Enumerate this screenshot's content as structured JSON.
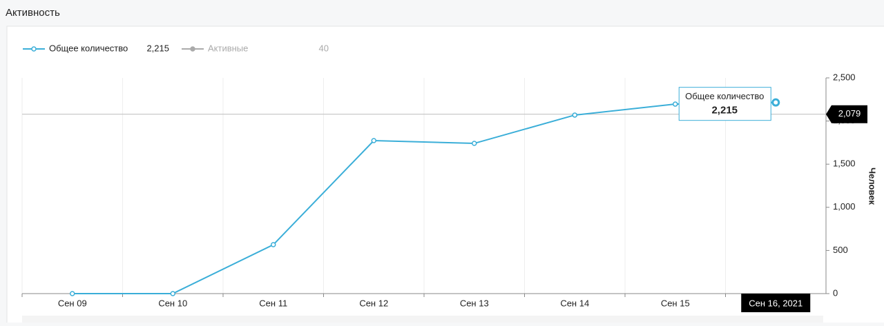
{
  "header": {
    "title": "Активность"
  },
  "chart_data": {
    "type": "line",
    "y_label": "Человек",
    "categories": [
      "Сен 09",
      "Сен 10",
      "Сен 11",
      "Сен 12",
      "Сен 13",
      "Сен 14",
      "Сен 15",
      "Сен 16, 2021"
    ],
    "series": [
      {
        "name": "Общее количество",
        "color": "#3aaed8",
        "visible": true,
        "values": [
          0,
          0,
          567,
          1773,
          1741,
          2069,
          2196,
          2215
        ],
        "legend_value": {
          "value": 2215,
          "label": "2,215"
        }
      },
      {
        "name": "Активные",
        "color": "#aaaaaa",
        "visible": false,
        "legend_value": 40
      }
    ],
    "ylim": [
      0,
      2500
    ],
    "yticks": [
      0,
      500,
      {
        "value": 1000,
        "label": "1,000"
      },
      {
        "value": 1500,
        "label": "1,500"
      },
      {
        "value": 2000,
        "label": "2,000"
      },
      {
        "value": 2500,
        "label": "2,500"
      }
    ],
    "grid": true,
    "crosshair": {
      "value": 2079,
      "label": "2,079"
    }
  }
}
